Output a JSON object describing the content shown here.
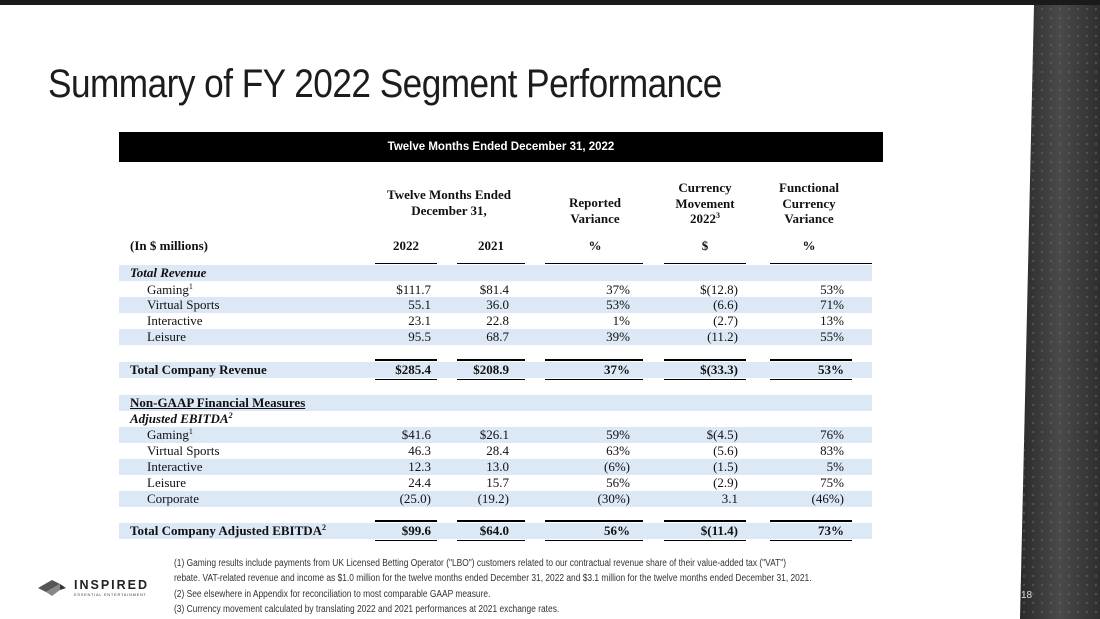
{
  "slide": {
    "title": "Summary of FY 2022 Segment Performance",
    "banner": "Twelve Months Ended December 31, 2022",
    "page_number": "18"
  },
  "table": {
    "headers": {
      "period_group": "Twelve Months Ended\nDecember 31,",
      "reported_variance": "Reported\nVariance",
      "currency_movement": "Currency\nMovement\n2022",
      "currency_movement_note": "3",
      "functional_variance": "Functional\nCurrency\nVariance"
    },
    "subheaders": {
      "label": "(In $ millions)",
      "col_2022": "2022",
      "col_2021": "2021",
      "col_reported": "%",
      "col_currency": "$",
      "col_functional": "%"
    },
    "revenue": {
      "section_label": "Total Revenue",
      "rows": [
        {
          "label": "Gaming",
          "note": "1",
          "v2022": "$111.7",
          "v2021": "$81.4",
          "reported": "37%",
          "currency": "$(12.8)",
          "functional": "53%"
        },
        {
          "label": "Virtual Sports",
          "note": "",
          "v2022": "55.1",
          "v2021": "36.0",
          "reported": "53%",
          "currency": "(6.6)",
          "functional": "71%"
        },
        {
          "label": "Interactive",
          "note": "",
          "v2022": "23.1",
          "v2021": "22.8",
          "reported": "1%",
          "currency": "(2.7)",
          "functional": "13%"
        },
        {
          "label": "Leisure",
          "note": "",
          "v2022": "95.5",
          "v2021": "68.7",
          "reported": "39%",
          "currency": "(11.2)",
          "functional": "55%"
        }
      ],
      "total": {
        "label": "Total Company Revenue",
        "v2022": "$285.4",
        "v2021": "$208.9",
        "reported": "37%",
        "currency": "$(33.3)",
        "functional": "53%"
      }
    },
    "non_gaap": {
      "section_label": "Non-GAAP Financial Measures",
      "subsection_label": "Adjusted EBITDA",
      "subsection_note": "2",
      "rows": [
        {
          "label": "Gaming",
          "note": "1",
          "v2022": "$41.6",
          "v2021": "$26.1",
          "reported": "59%",
          "currency": "$(4.5)",
          "functional": "76%"
        },
        {
          "label": "Virtual Sports",
          "note": "",
          "v2022": "46.3",
          "v2021": "28.4",
          "reported": "63%",
          "currency": "(5.6)",
          "functional": "83%"
        },
        {
          "label": "Interactive",
          "note": "",
          "v2022": "12.3",
          "v2021": "13.0",
          "reported": "(6%)",
          "currency": "(1.5)",
          "functional": "5%"
        },
        {
          "label": "Leisure",
          "note": "",
          "v2022": "24.4",
          "v2021": "15.7",
          "reported": "56%",
          "currency": "(2.9)",
          "functional": "75%"
        },
        {
          "label": "Corporate",
          "note": "",
          "v2022": "(25.0)",
          "v2021": "(19.2)",
          "reported": "(30%)",
          "currency": "3.1",
          "functional": "(46%)"
        }
      ],
      "total": {
        "label": "Total Company Adjusted EBITDA",
        "note": "2",
        "v2022": "$99.6",
        "v2021": "$64.0",
        "reported": "56%",
        "currency": "$(11.4)",
        "functional": "73%"
      }
    }
  },
  "footnotes": [
    "(1) Gaming results include payments from UK Licensed Betting Operator (\"LBO\") customers related to our contractual revenue share of their value-added tax (\"VAT\")",
    "rebate. VAT-related revenue and income as $1.0 million for the twelve months ended December 31, 2022 and $3.1 million for the twelve months ended December 31, 2021.",
    "(2) See elsewhere in Appendix for reconciliation to most comparable GAAP measure.",
    "(3) Currency movement calculated by translating 2022 and 2021 performances at 2021 exchange rates."
  ],
  "logo": {
    "name": "INSPIRED",
    "tagline": "ESSENTIAL ENTERTAINMENT"
  },
  "colors": {
    "row_shade": "#dce8f5",
    "banner_bg": "#000000",
    "side_panel": "#3a3a3a"
  }
}
